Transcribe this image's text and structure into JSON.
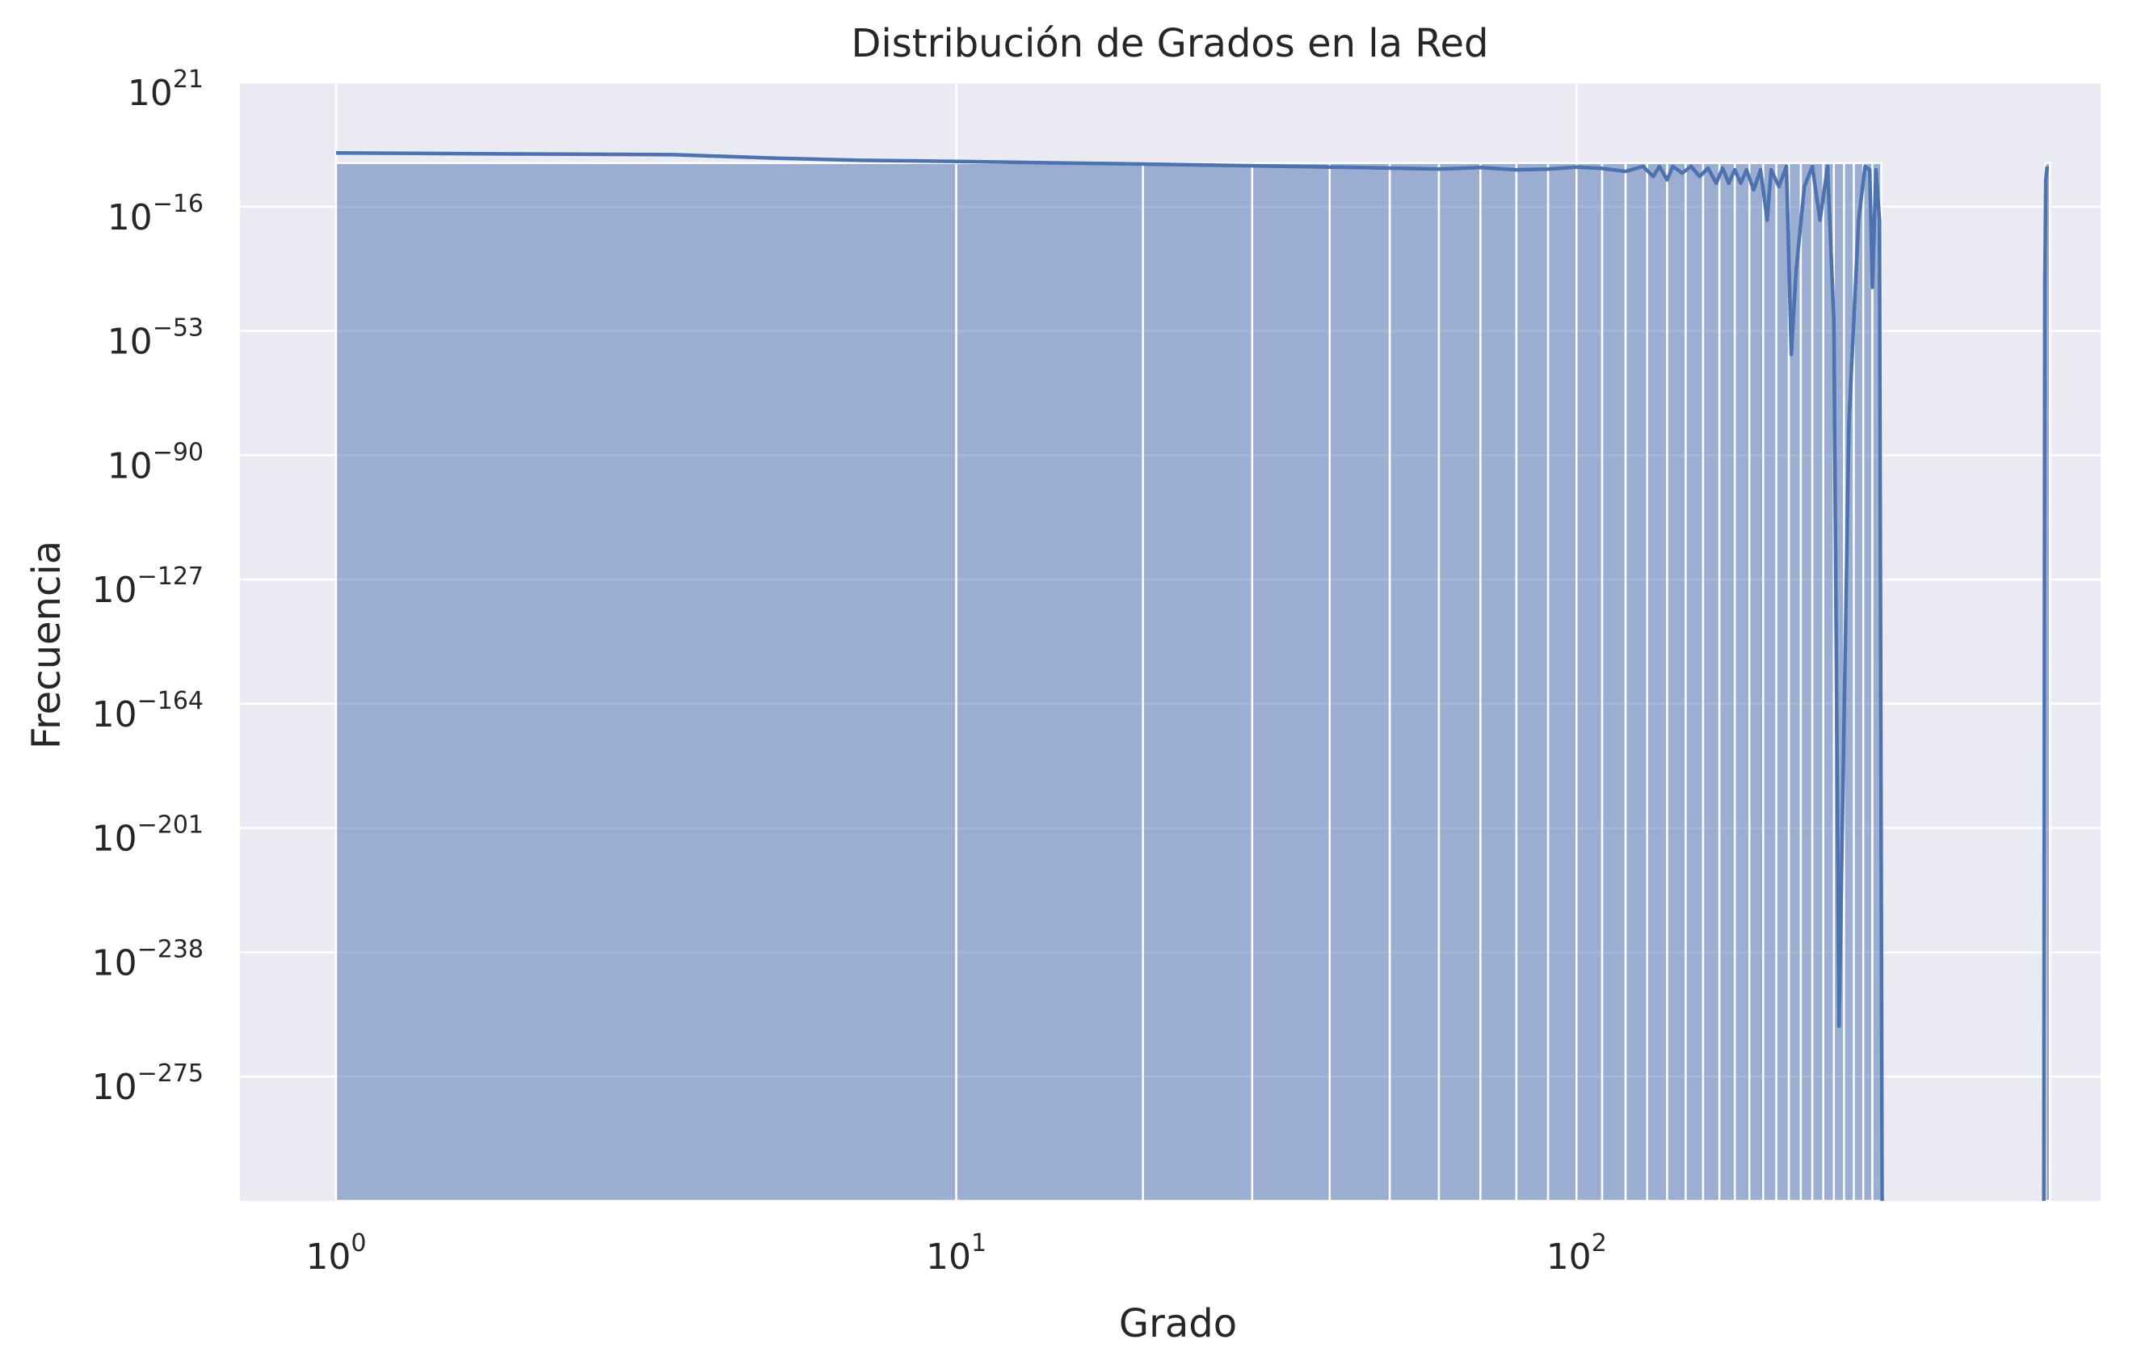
{
  "chart_data": {
    "type": "bar",
    "title": "Distribución de Grados en la Red",
    "xlabel": "Grado",
    "ylabel": "Frecuencia",
    "xscale": "log",
    "yscale": "log",
    "xlim": [
      0.7,
      700
    ],
    "ylim_exp": [
      -312,
      21
    ],
    "grid": true,
    "colors": {
      "background": "#eaeaf2",
      "grid": "#ffffff",
      "fill": "#4c72b0",
      "line": "#4c72b0"
    },
    "x_ticks": [
      {
        "value": 1,
        "base": "10",
        "exp": "0"
      },
      {
        "value": 10,
        "base": "10",
        "exp": "1"
      },
      {
        "value": 100,
        "base": "10",
        "exp": "2"
      }
    ],
    "y_ticks": [
      {
        "exp_value": 21,
        "base": "10",
        "exp": "21"
      },
      {
        "exp_value": -16,
        "base": "10",
        "exp": "−16"
      },
      {
        "exp_value": -53,
        "base": "10",
        "exp": "−53"
      },
      {
        "exp_value": -90,
        "base": "10",
        "exp": "−90"
      },
      {
        "exp_value": -127,
        "base": "10",
        "exp": "−127"
      },
      {
        "exp_value": -164,
        "base": "10",
        "exp": "−164"
      },
      {
        "exp_value": -201,
        "base": "10",
        "exp": "−201"
      },
      {
        "exp_value": -238,
        "base": "10",
        "exp": "−238"
      },
      {
        "exp_value": -275,
        "base": "10",
        "exp": "−275"
      }
    ],
    "bin_edges": [
      1,
      10,
      20,
      30,
      40,
      50,
      60,
      70,
      80,
      90,
      100,
      110,
      120,
      130,
      140,
      150,
      160,
      170,
      180,
      190,
      200,
      210,
      220,
      230,
      240,
      250,
      260,
      270,
      280,
      290,
      300,
      310
    ],
    "right_bin": [
      570,
      580
    ],
    "kde_line_log10": [
      [
        1,
        0.0
      ],
      [
        2,
        -0.3
      ],
      [
        3.5,
        -0.5
      ],
      [
        5,
        -1.5
      ],
      [
        7,
        -2.2
      ],
      [
        10,
        -2.5
      ],
      [
        15,
        -3.0
      ],
      [
        20,
        -3.3
      ],
      [
        30,
        -3.8
      ],
      [
        40,
        -4.2
      ],
      [
        50,
        -4.5
      ],
      [
        60,
        -4.8
      ],
      [
        70,
        -4.3
      ],
      [
        80,
        -5.0
      ],
      [
        90,
        -4.8
      ],
      [
        100,
        -4.2
      ],
      [
        110,
        -4.6
      ],
      [
        120,
        -5.5
      ],
      [
        128,
        -4.0
      ],
      [
        133,
        -7.0
      ],
      [
        136,
        -4.0
      ],
      [
        140,
        -8.0
      ],
      [
        143,
        -4.0
      ],
      [
        148,
        -6.0
      ],
      [
        153,
        -4.0
      ],
      [
        158,
        -7.0
      ],
      [
        163,
        -4.5
      ],
      [
        168,
        -9.0
      ],
      [
        172,
        -4.5
      ],
      [
        176,
        -9.0
      ],
      [
        180,
        -5.0
      ],
      [
        184,
        -9.0
      ],
      [
        188,
        -5.0
      ],
      [
        193,
        -11.0
      ],
      [
        198,
        -5.0
      ],
      [
        203,
        -20.0
      ],
      [
        206,
        -5.0
      ],
      [
        212,
        -10.0
      ],
      [
        218,
        -4.0
      ],
      [
        222,
        -60.0
      ],
      [
        226,
        -35.0
      ],
      [
        233,
        -10.0
      ],
      [
        240,
        -4.0
      ],
      [
        247,
        -20.0
      ],
      [
        254,
        -4.0
      ],
      [
        260,
        -50.0
      ],
      [
        265,
        -260.0
      ],
      [
        275,
        -80.0
      ],
      [
        285,
        -20.0
      ],
      [
        292,
        -4.0
      ],
      [
        297,
        -5.0
      ],
      [
        300,
        -40.0
      ],
      [
        304,
        -5.0
      ],
      [
        308,
        -20.0
      ],
      [
        311,
        -312.0
      ]
    ],
    "kde_line_right_log10": [
      [
        567,
        -312.0
      ],
      [
        569,
        -40.0
      ],
      [
        571,
        -8.0
      ],
      [
        574,
        -4.0
      ]
    ]
  }
}
